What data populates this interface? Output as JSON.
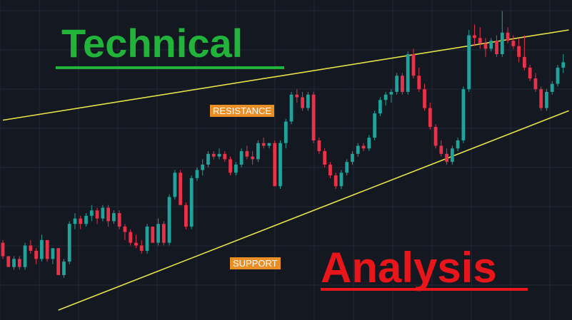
{
  "headline": {
    "primary": "Technical",
    "secondary": "Analysis"
  },
  "colors": {
    "background": "#141821",
    "grid": "#222836",
    "bullish": "#1fa39a",
    "bearish": "#e8324a",
    "trendline": "#e6e24a",
    "tag": "#e98f26",
    "primary_headline": "#22b33a",
    "secondary_headline": "#e8151b"
  },
  "chart_data": {
    "type": "candlestick",
    "title": "",
    "xlabel": "",
    "ylabel": "",
    "grid": true,
    "ylim": [
      0,
      100
    ],
    "annotations": [
      {
        "label": "RESISTANCE",
        "kind": "upper-trendline"
      },
      {
        "label": "SUPPORT",
        "kind": "lower-trendline"
      }
    ],
    "trendlines": [
      {
        "name": "resistance",
        "start": [
          0,
          66.5
        ],
        "end": [
          102,
          100
        ]
      },
      {
        "name": "support",
        "start": [
          10,
          -4
        ],
        "end": [
          102,
          70
        ]
      }
    ],
    "candles": [
      [
        0,
        21,
        22,
        15,
        16
      ],
      [
        1,
        16,
        16,
        12,
        12
      ],
      [
        2,
        12,
        16,
        11,
        15
      ],
      [
        3,
        15,
        16,
        11,
        12
      ],
      [
        4,
        12,
        21,
        11,
        20
      ],
      [
        5,
        20,
        22,
        17,
        18
      ],
      [
        6,
        18,
        19,
        13,
        15
      ],
      [
        7,
        15,
        24,
        14,
        22
      ],
      [
        8,
        22,
        22,
        14,
        15
      ],
      [
        9,
        15,
        19,
        13,
        19
      ],
      [
        10,
        19,
        19,
        9,
        9
      ],
      [
        11,
        9,
        15,
        8,
        14
      ],
      [
        12,
        14,
        29,
        13,
        28
      ],
      [
        13,
        28,
        32,
        26,
        30
      ],
      [
        14,
        30,
        31,
        26,
        28
      ],
      [
        15,
        28,
        32,
        27,
        31
      ],
      [
        16,
        31,
        35,
        29,
        33
      ],
      [
        17,
        33,
        34,
        28,
        30
      ],
      [
        18,
        30,
        35,
        29,
        34
      ],
      [
        19,
        34,
        35,
        27,
        29
      ],
      [
        20,
        29,
        33,
        28,
        32
      ],
      [
        21,
        32,
        33,
        26,
        27
      ],
      [
        22,
        27,
        28,
        22,
        25
      ],
      [
        23,
        25,
        26,
        20,
        21
      ],
      [
        24,
        21,
        24,
        19,
        20
      ],
      [
        25,
        20,
        22,
        17,
        18
      ],
      [
        26,
        18,
        28,
        17,
        27
      ],
      [
        27,
        27,
        27,
        21,
        21
      ],
      [
        28,
        21,
        30,
        20,
        28
      ],
      [
        29,
        28,
        29,
        20,
        21
      ],
      [
        30,
        21,
        39,
        20,
        38
      ],
      [
        31,
        38,
        48,
        37,
        47
      ],
      [
        32,
        47,
        48,
        35,
        35
      ],
      [
        33,
        35,
        36,
        26,
        27
      ],
      [
        34,
        27,
        46,
        26,
        45
      ],
      [
        35,
        45,
        49,
        44,
        48
      ],
      [
        36,
        48,
        52,
        46,
        50
      ],
      [
        37,
        50,
        55,
        49,
        54
      ],
      [
        38,
        54,
        55,
        52,
        53
      ],
      [
        39,
        53,
        56,
        52,
        54
      ],
      [
        40,
        54,
        55,
        51,
        52
      ],
      [
        41,
        52,
        53,
        46,
        47
      ],
      [
        42,
        47,
        51,
        46,
        50
      ],
      [
        43,
        50,
        56,
        49,
        55
      ],
      [
        44,
        55,
        57,
        52,
        53
      ],
      [
        45,
        53,
        55,
        50,
        52
      ],
      [
        46,
        52,
        59,
        51,
        58
      ],
      [
        47,
        58,
        60,
        56,
        57
      ],
      [
        48,
        57,
        58,
        56,
        58
      ],
      [
        49,
        58,
        59,
        42,
        42
      ],
      [
        50,
        42,
        59,
        41,
        58
      ],
      [
        51,
        58,
        67,
        56,
        66
      ],
      [
        52,
        66,
        77,
        65,
        76
      ],
      [
        53,
        76,
        78,
        73,
        75
      ],
      [
        54,
        75,
        77,
        70,
        71
      ],
      [
        55,
        71,
        77,
        70,
        76
      ],
      [
        56,
        76,
        77,
        58,
        59
      ],
      [
        57,
        59,
        60,
        54,
        55
      ],
      [
        58,
        55,
        56,
        49,
        50
      ],
      [
        59,
        50,
        51,
        45,
        46
      ],
      [
        60,
        46,
        47,
        41,
        42
      ],
      [
        61,
        42,
        48,
        41,
        47
      ],
      [
        62,
        47,
        52,
        46,
        51
      ],
      [
        63,
        51,
        55,
        50,
        54
      ],
      [
        64,
        54,
        58,
        53,
        57
      ],
      [
        65,
        57,
        58,
        55,
        56
      ],
      [
        66,
        56,
        61,
        55,
        60
      ],
      [
        67,
        60,
        70,
        59,
        69
      ],
      [
        68,
        69,
        75,
        68,
        74
      ],
      [
        69,
        74,
        77,
        72,
        76
      ],
      [
        70,
        76,
        78,
        73,
        77
      ],
      [
        71,
        77,
        84,
        76,
        83
      ],
      [
        72,
        83,
        84,
        76,
        77
      ],
      [
        73,
        77,
        92,
        76,
        91
      ],
      [
        74,
        91,
        93,
        82,
        83
      ],
      [
        75,
        83,
        86,
        77,
        78
      ],
      [
        76,
        78,
        80,
        70,
        71
      ],
      [
        77,
        71,
        73,
        63,
        64
      ],
      [
        78,
        64,
        65,
        56,
        57
      ],
      [
        79,
        57,
        59,
        53,
        54
      ],
      [
        80,
        54,
        56,
        50,
        51
      ],
      [
        81,
        51,
        57,
        50,
        56
      ],
      [
        82,
        56,
        60,
        55,
        59
      ],
      [
        83,
        59,
        79,
        58,
        78
      ],
      [
        84,
        78,
        100,
        77,
        98
      ],
      [
        85,
        98,
        102,
        94,
        97
      ],
      [
        86,
        97,
        101,
        93,
        95
      ],
      [
        87,
        95,
        97,
        90,
        93
      ],
      [
        88,
        93,
        97,
        92,
        96
      ],
      [
        89,
        96,
        98,
        90,
        91
      ],
      [
        90,
        91,
        107,
        90,
        99
      ],
      [
        91,
        99,
        101,
        95,
        96
      ],
      [
        92,
        96,
        98,
        93,
        94
      ],
      [
        93,
        94,
        97,
        88,
        90
      ],
      [
        94,
        90,
        98,
        85,
        86
      ],
      [
        95,
        86,
        87,
        81,
        82
      ],
      [
        96,
        82,
        84,
        77,
        78
      ],
      [
        97,
        78,
        79,
        70,
        71
      ],
      [
        98,
        71,
        78,
        70,
        77
      ],
      [
        99,
        77,
        81,
        76,
        80
      ],
      [
        100,
        80,
        87,
        79,
        86
      ],
      [
        101,
        86,
        91,
        84,
        88
      ]
    ]
  }
}
